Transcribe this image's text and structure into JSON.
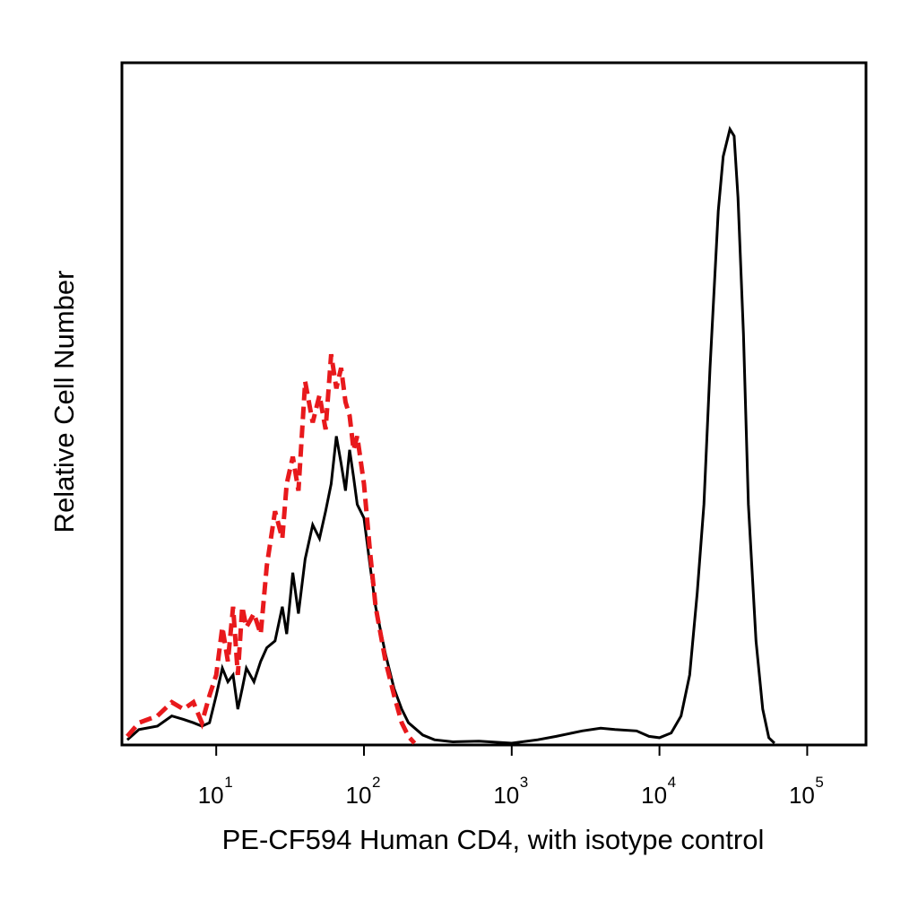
{
  "chart_data": {
    "type": "line",
    "title": "",
    "xlabel": "PE-CF594 Human CD4, with isotype control",
    "ylabel": "Relative Cell Number",
    "x_scale": "log",
    "xlim": [
      2.3,
      250000
    ],
    "ylim": [
      0,
      1.0
    ],
    "grid": false,
    "legend": "none",
    "x_ticks": [
      {
        "base": "10",
        "exp": "1",
        "value": 10
      },
      {
        "base": "10",
        "exp": "2",
        "value": 100
      },
      {
        "base": "10",
        "exp": "3",
        "value": 1000
      },
      {
        "base": "10",
        "exp": "4",
        "value": 10000
      },
      {
        "base": "10",
        "exp": "5",
        "value": 100000
      }
    ],
    "series": [
      {
        "color": "#000000",
        "style": "solid",
        "x": [
          2.5,
          3,
          4,
          5,
          6,
          7,
          8,
          9,
          10,
          11,
          12,
          13,
          14,
          15,
          16,
          18,
          20,
          22,
          25,
          28,
          30,
          33,
          36,
          40,
          45,
          50,
          55,
          60,
          65,
          70,
          75,
          80,
          85,
          90,
          100,
          110,
          120,
          140,
          160,
          180,
          200,
          250,
          300,
          400,
          600,
          1000,
          1500,
          2000,
          3000,
          4000,
          5000,
          7000,
          8500,
          10000,
          12000,
          14000,
          16000,
          18000,
          20000,
          22000,
          25000,
          27000,
          30000,
          32000,
          34000,
          37000,
          40000,
          45000,
          50000,
          55000,
          60000
        ],
        "y": [
          0.005,
          0.02,
          0.025,
          0.04,
          0.035,
          0.03,
          0.025,
          0.03,
          0.07,
          0.11,
          0.09,
          0.1,
          0.05,
          0.08,
          0.11,
          0.09,
          0.12,
          0.14,
          0.15,
          0.2,
          0.16,
          0.25,
          0.19,
          0.27,
          0.32,
          0.3,
          0.34,
          0.38,
          0.45,
          0.41,
          0.37,
          0.43,
          0.39,
          0.35,
          0.33,
          0.26,
          0.2,
          0.13,
          0.08,
          0.05,
          0.03,
          0.012,
          0.005,
          0.002,
          0.003,
          0.0,
          0.005,
          0.01,
          0.018,
          0.022,
          0.02,
          0.018,
          0.01,
          0.008,
          0.015,
          0.04,
          0.1,
          0.22,
          0.35,
          0.55,
          0.78,
          0.86,
          0.9,
          0.89,
          0.8,
          0.6,
          0.35,
          0.15,
          0.05,
          0.008,
          0.0
        ]
      },
      {
        "color": "#e8191c",
        "style": "dashed",
        "x": [
          2.5,
          3,
          4,
          5,
          6,
          7,
          8,
          9,
          10,
          11,
          12,
          13,
          14,
          15,
          16,
          18,
          20,
          22,
          25,
          28,
          30,
          33,
          36,
          40,
          45,
          50,
          55,
          60,
          65,
          70,
          75,
          80,
          85,
          90,
          100,
          110,
          120,
          140,
          160,
          180,
          200,
          220
        ],
        "y": [
          0.01,
          0.03,
          0.04,
          0.06,
          0.05,
          0.06,
          0.03,
          0.07,
          0.1,
          0.17,
          0.12,
          0.2,
          0.1,
          0.2,
          0.17,
          0.19,
          0.16,
          0.26,
          0.34,
          0.3,
          0.38,
          0.42,
          0.37,
          0.53,
          0.47,
          0.51,
          0.46,
          0.57,
          0.52,
          0.55,
          0.5,
          0.48,
          0.43,
          0.45,
          0.38,
          0.28,
          0.2,
          0.12,
          0.07,
          0.03,
          0.01,
          0.0
        ]
      }
    ]
  }
}
